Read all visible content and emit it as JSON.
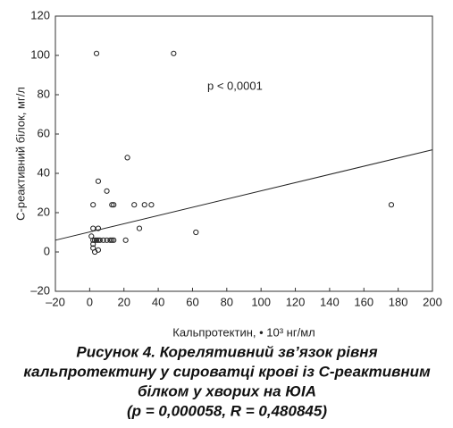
{
  "chart_data": {
    "type": "scatter",
    "ylabel": "С-реактивний білок, мг/л",
    "xlabel": "Кальпротектин, • 10³ нг/мл",
    "annotation": "p < 0,0001",
    "caption": [
      "Рисунок 4. Корелятивний зв’язок рівня",
      "кальпротектину у сироватці крові із С-реактивним",
      "білком у хворих на ЮІА",
      "(p = 0,000058, R = 0,480845)"
    ],
    "x": [
      4,
      49,
      22,
      5,
      10,
      2,
      13,
      14,
      26,
      32,
      36,
      29,
      62,
      176,
      2,
      5,
      1,
      2,
      3,
      4,
      5,
      6,
      8,
      10,
      12,
      13,
      14,
      21,
      2,
      2,
      3,
      5
    ],
    "values": [
      101,
      101,
      48,
      36,
      31,
      24,
      24,
      24,
      24,
      24,
      24,
      12,
      10,
      24,
      12,
      12,
      8,
      6,
      6,
      6,
      6,
      6,
      6,
      6,
      6,
      6,
      6,
      6,
      4,
      2,
      0,
      1
    ],
    "trend_line": {
      "x": [
        -20,
        200
      ],
      "y": [
        6,
        52
      ]
    },
    "xlim": [
      -20,
      200
    ],
    "ylim": [
      -20,
      120
    ],
    "xticks": [
      {
        "value": -20,
        "label": "–20"
      },
      0,
      20,
      40,
      60,
      80,
      100,
      120,
      140,
      160,
      180,
      200
    ],
    "yticks": [
      {
        "value": -20,
        "label": "–20"
      },
      0,
      20,
      40,
      60,
      80,
      100,
      120
    ],
    "color": "#222222",
    "grid": false
  }
}
